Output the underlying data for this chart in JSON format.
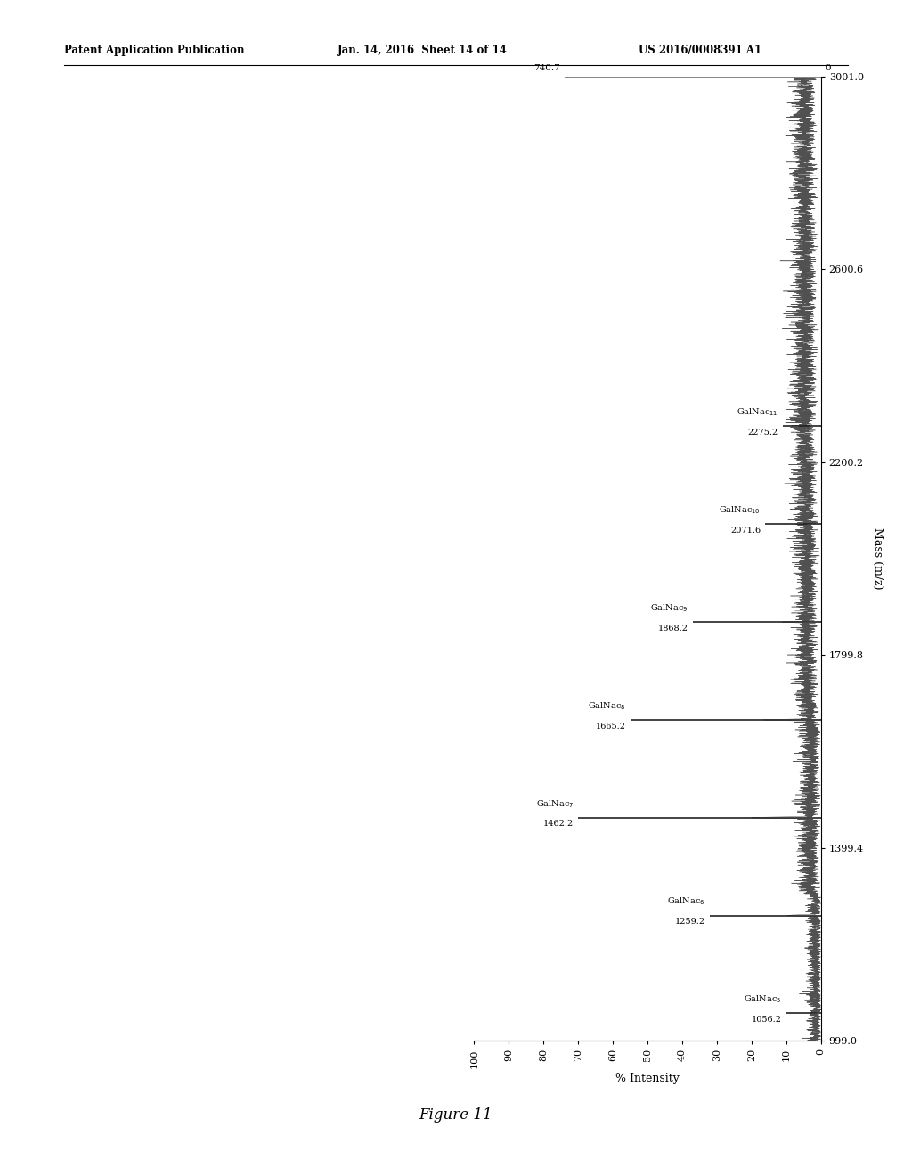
{
  "title": "Figure 11",
  "xlabel": "% Intensity",
  "ylabel": "Mass (m/z)",
  "x_ticks": [
    0,
    10,
    20,
    30,
    40,
    50,
    60,
    70,
    80,
    90,
    100
  ],
  "y_tick_labels": [
    "999.0",
    "1399.4",
    "1799.8",
    "2200.2",
    "2600.6",
    "3001.0"
  ],
  "y_tick_vals": [
    999.0,
    1399.4,
    1799.8,
    2200.2,
    2600.6,
    3001.0
  ],
  "y_range": [
    999.0,
    3001.0
  ],
  "x_range": [
    0,
    100
  ],
  "peaks": [
    {
      "mass": 1056.2,
      "intensity": 10,
      "label": "GalNac",
      "sub": "5",
      "mass_label": "1056.2"
    },
    {
      "mass": 1259.2,
      "intensity": 32,
      "label": "GalNac",
      "sub": "6",
      "mass_label": "1259.2"
    },
    {
      "mass": 1462.2,
      "intensity": 70,
      "label": "GalNac",
      "sub": "7",
      "mass_label": "1462.2"
    },
    {
      "mass": 1665.2,
      "intensity": 55,
      "label": "GalNac",
      "sub": "8",
      "mass_label": "1665.2"
    },
    {
      "mass": 1868.2,
      "intensity": 37,
      "label": "GalNac",
      "sub": "9",
      "mass_label": "1868.2"
    },
    {
      "mass": 2071.6,
      "intensity": 16,
      "label": "GalNac",
      "sub": "10",
      "mass_label": "2071.6"
    },
    {
      "mass": 2275.2,
      "intensity": 11,
      "label": "GalNac",
      "sub": "11",
      "mass_label": "2275.2"
    }
  ],
  "top_line": {
    "intensity_label": "740.7",
    "zero_label": "0",
    "mass_val": 3001.0
  },
  "header": {
    "left": "Patent Application Publication",
    "center": "Jan. 14, 2016  Sheet 14 of 14",
    "right": "US 2016/0008391 A1"
  },
  "background_color": "#ffffff",
  "figure_caption": "Figure 11"
}
